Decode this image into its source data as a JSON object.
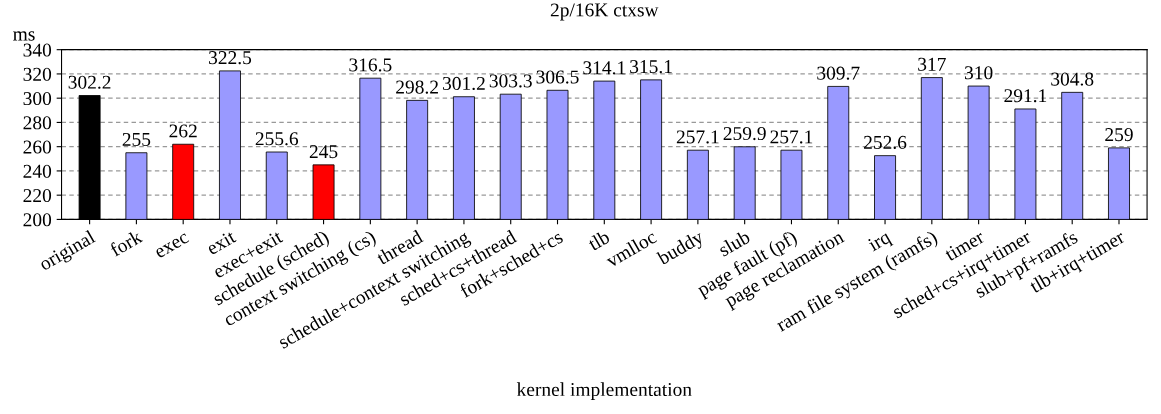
{
  "chart_data": {
    "type": "bar",
    "title": "2p/16K ctxsw",
    "xlabel": "kernel implementation",
    "ylabel": "ms",
    "categories": [
      "original",
      "fork",
      "exec",
      "exit",
      "exec+exit",
      "schedule (sched)",
      "context switching (cs)",
      "thread",
      "schedule+context switching",
      "sched+cs+thread",
      "fork+sched+cs",
      "tlb",
      "vmlloc",
      "buddy",
      "slub",
      "page fault (pf)",
      "page reclamation",
      "irq",
      "ram file system (ramfs)",
      "timer",
      "sched+cs+irq+timer",
      "slub+pf+ramfs",
      "tlb+irq+timer"
    ],
    "values": [
      302.2,
      255,
      262,
      322.5,
      255.6,
      245,
      316.5,
      298.2,
      301.2,
      303.3,
      306.5,
      314.1,
      315.1,
      257.1,
      259.9,
      257.1,
      309.7,
      252.6,
      317,
      310,
      291.1,
      304.8,
      259
    ],
    "colors": [
      "#000000",
      "#9999ff",
      "#ff0000",
      "#9999ff",
      "#9999ff",
      "#ff0000",
      "#9999ff",
      "#9999ff",
      "#9999ff",
      "#9999ff",
      "#9999ff",
      "#9999ff",
      "#9999ff",
      "#9999ff",
      "#9999ff",
      "#9999ff",
      "#9999ff",
      "#9999ff",
      "#9999ff",
      "#9999ff",
      "#9999ff",
      "#9999ff",
      "#9999ff"
    ],
    "ylim": [
      200,
      340
    ],
    "yticks": [
      200,
      220,
      240,
      260,
      280,
      300,
      320,
      340
    ],
    "grid": "y",
    "data_labels": true
  }
}
